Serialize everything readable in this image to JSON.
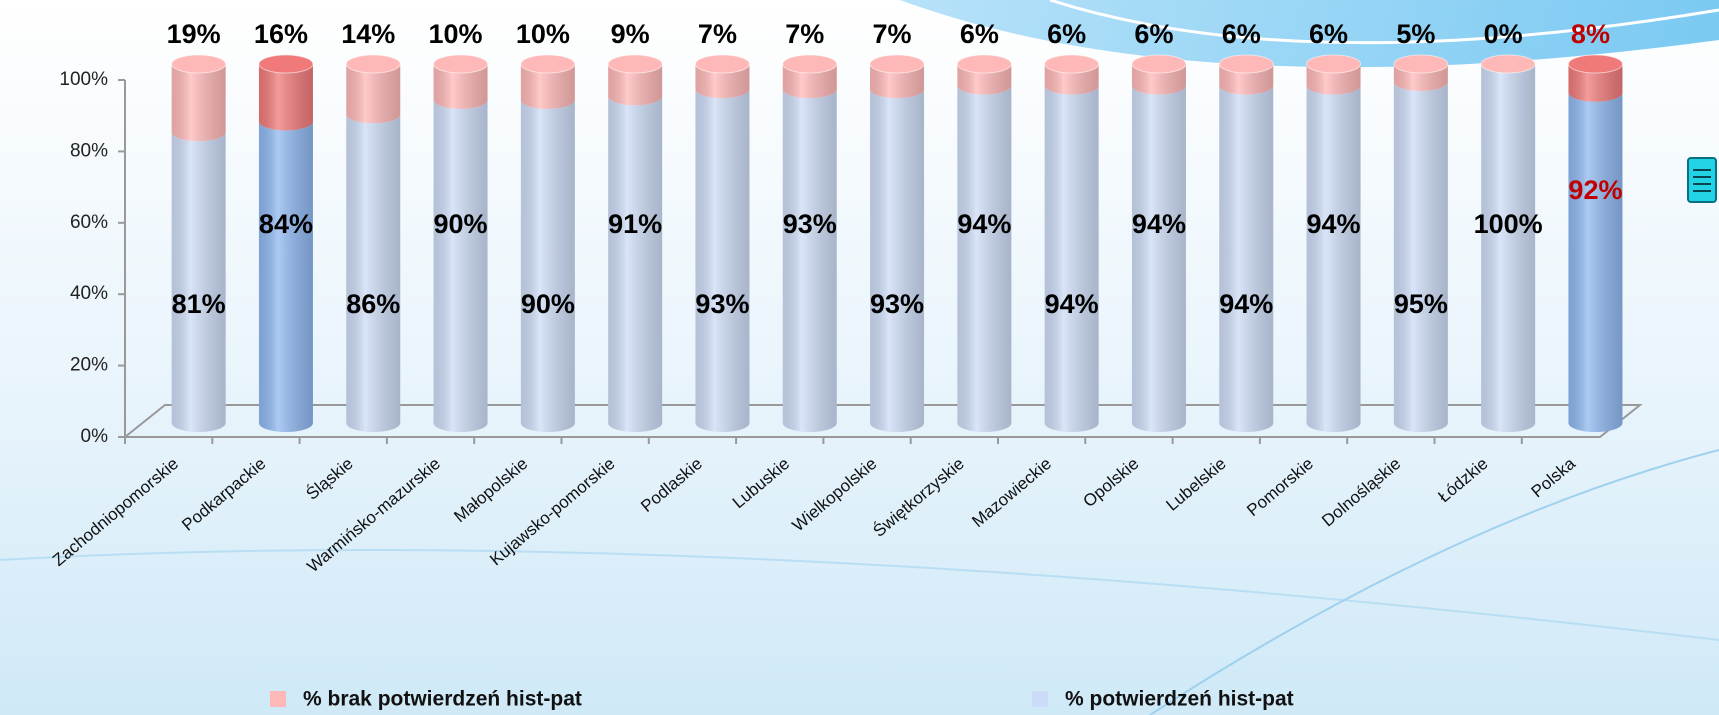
{
  "chart_data": {
    "type": "stacked-cylinder",
    "categories": [
      "Zachodniopomorskie",
      "Podkarpackie",
      "Śląskie",
      "Warmińsko-mazurskie",
      "Małopolskie",
      "Kujawsko-pomorskie",
      "Podlaskie",
      "Lubuskie",
      "Wielkopolskie",
      "Świętkorzyskie",
      "Mazowieckie",
      "Opolskie",
      "Lubelskie",
      "Pomorskie",
      "Dolnośląskie",
      "Łódzkie",
      "Polska"
    ],
    "series": [
      {
        "name": "% brak potwierdzeń hist-pat",
        "color": "#ffb8b8",
        "colors": [
          "#ffb8b8",
          "#f07a7a",
          "#ffb8b8",
          "#ffb8b8",
          "#ffb8b8",
          "#ffb8b8",
          "#ffb8b8",
          "#ffb8b8",
          "#ffb8b8",
          "#ffb8b8",
          "#ffb8b8",
          "#ffb8b8",
          "#ffb8b8",
          "#ffb8b8",
          "#ffb8b8",
          "#ffb8b8",
          "#f07a7a"
        ],
        "label_colors": [
          "#000",
          "#000",
          "#000",
          "#000",
          "#000",
          "#000",
          "#000",
          "#000",
          "#000",
          "#000",
          "#000",
          "#000",
          "#000",
          "#000",
          "#000",
          "#000",
          "#c00000"
        ],
        "values": [
          19,
          16,
          14,
          10,
          10,
          9,
          7,
          7,
          7,
          6,
          6,
          6,
          6,
          6,
          5,
          0,
          8
        ],
        "value_labels": [
          "19%",
          "16%",
          "14%",
          "10%",
          "10%",
          "9%",
          "7%",
          "7%",
          "7%",
          "6%",
          "6%",
          "6%",
          "6%",
          "6%",
          "5%",
          "0%",
          "8%"
        ]
      },
      {
        "name": "% potwierdzeń hist-pat",
        "color": "#cddcf6",
        "colors": [
          "#cddcf6",
          "#8fb8f0",
          "#cddcf6",
          "#cddcf6",
          "#cddcf6",
          "#cddcf6",
          "#cddcf6",
          "#cddcf6",
          "#cddcf6",
          "#cddcf6",
          "#cddcf6",
          "#cddcf6",
          "#cddcf6",
          "#cddcf6",
          "#cddcf6",
          "#cddcf6",
          "#8fb8f0"
        ],
        "label_colors": [
          "#000",
          "#000",
          "#000",
          "#000",
          "#000",
          "#000",
          "#000",
          "#000",
          "#000",
          "#000",
          "#000",
          "#000",
          "#000",
          "#000",
          "#000",
          "#000",
          "#c00000"
        ],
        "values": [
          81,
          84,
          86,
          90,
          90,
          91,
          93,
          93,
          93,
          94,
          94,
          94,
          94,
          94,
          95,
          100,
          92
        ],
        "value_labels": [
          "81%",
          "84%",
          "86%",
          "90%",
          "90%",
          "91%",
          "93%",
          "93%",
          "93%",
          "94%",
          "94%",
          "94%",
          "94%",
          "94%",
          "95%",
          "100%",
          "92%"
        ]
      }
    ],
    "ylim": [
      0,
      100
    ],
    "yticks": [
      {
        "value": 0,
        "label": "0%"
      },
      {
        "value": 20,
        "label": "20%"
      },
      {
        "value": 40,
        "label": "40%"
      },
      {
        "value": 60,
        "label": "60%"
      },
      {
        "value": 80,
        "label": "80%"
      },
      {
        "value": 100,
        "label": "100%"
      }
    ]
  }
}
